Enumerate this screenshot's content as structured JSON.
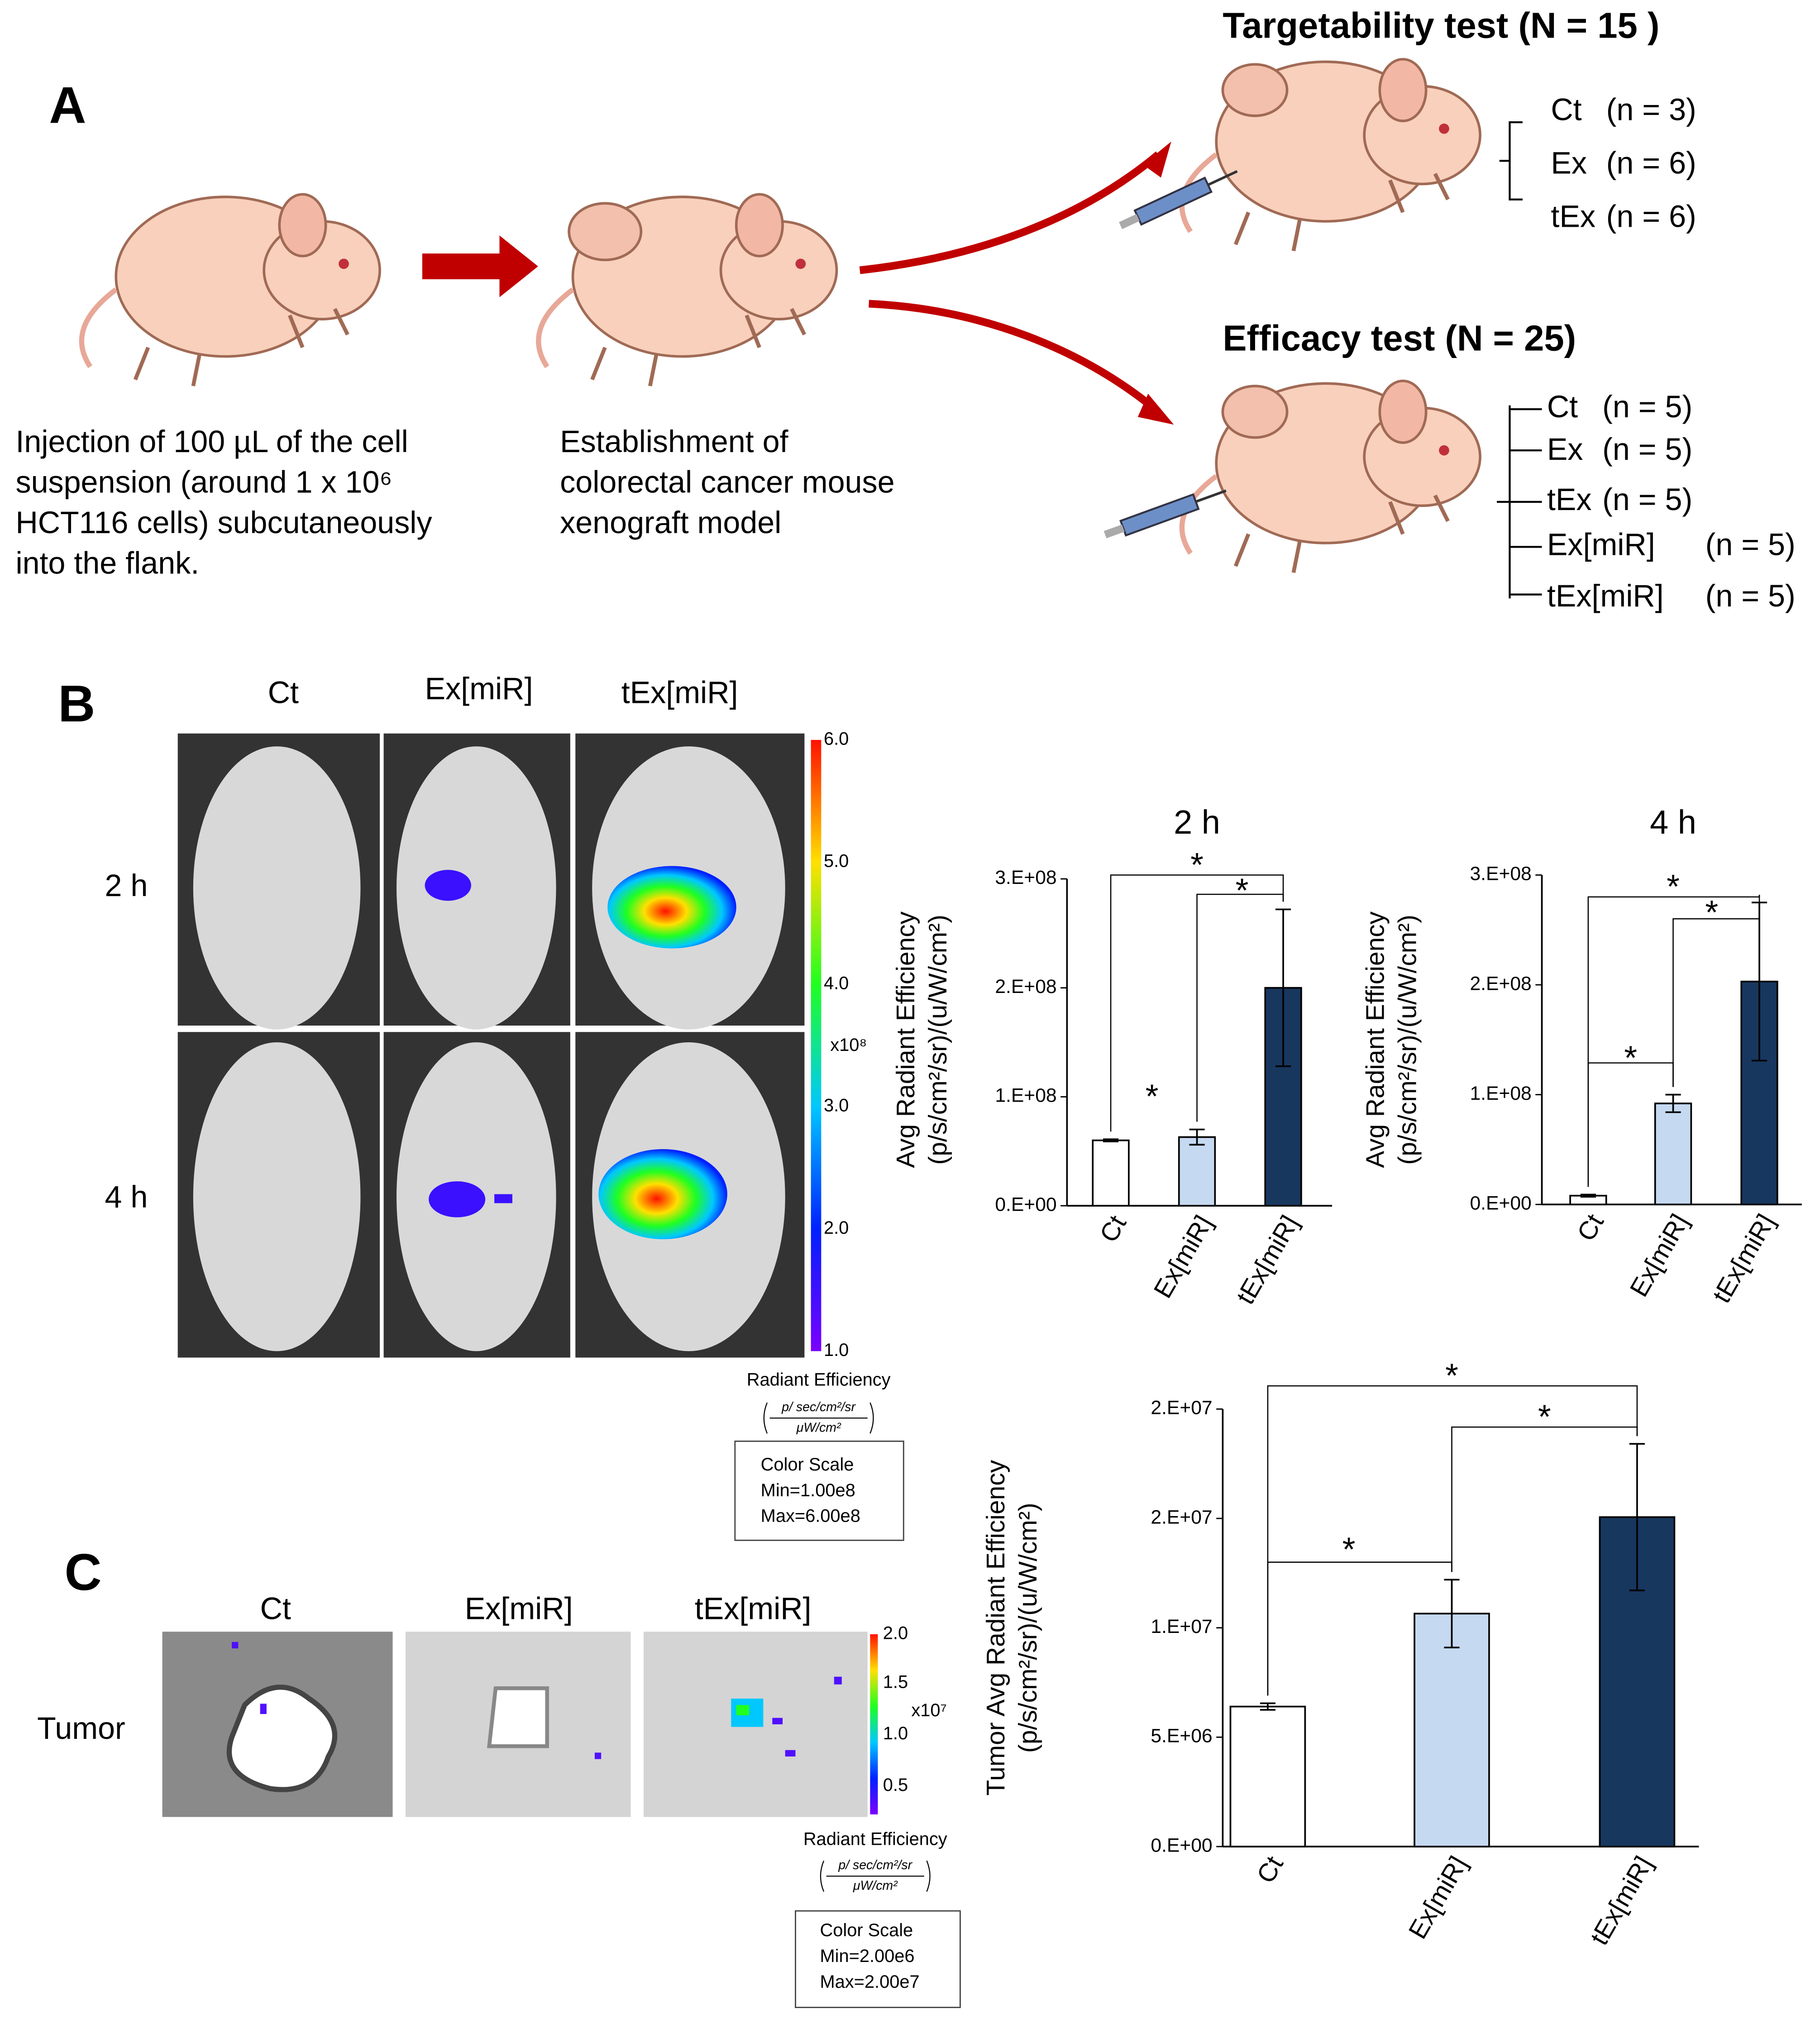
{
  "panel_a": {
    "label": "A",
    "step1_caption": [
      "Injection of 100 µL of the cell",
      "suspension (around 1 x 10⁶",
      "HCT116 cells) subcutaneously",
      "into the flank."
    ],
    "step2_caption": [
      "Establishment of",
      "colorectal cancer mouse",
      "xenograft model"
    ],
    "targetability": {
      "title": "Targetability test (N = 15 )",
      "groups": [
        [
          "Ct",
          "(n = 3)"
        ],
        [
          "Ex",
          "(n = 6)"
        ],
        [
          "tEx",
          "(n = 6)"
        ]
      ]
    },
    "efficacy": {
      "title": "Efficacy test (N = 25)",
      "groups": [
        [
          "Ct",
          "(n = 5)"
        ],
        [
          "Ex",
          "(n = 5)"
        ],
        [
          "tEx",
          "(n = 5)"
        ],
        [
          "Ex[miR]",
          "(n = 5)"
        ],
        [
          "tEx[miR]",
          "(n = 5)"
        ]
      ]
    }
  },
  "panel_b": {
    "label": "B",
    "columns": [
      "Ct",
      "Ex[miR]",
      "tEx[miR]"
    ],
    "rows": [
      "2 h",
      "4 h"
    ],
    "colorbar_labels": [
      "6.0",
      "5.0",
      "4.0",
      "3.0",
      "2.0",
      "1.0"
    ],
    "colorbar_multiplier": "x10⁸",
    "scale_title": "Radiant Efficiency",
    "formula": {
      "numerator": "p/ sec/cm²/sr",
      "denominator": "μW/cm²"
    },
    "scale_box": [
      "Color Scale",
      "Min=1.00e8",
      "Max=6.00e8"
    ]
  },
  "panel_c": {
    "label": "C",
    "columns": [
      "Ct",
      "Ex[miR]",
      "tEx[miR]"
    ],
    "row": "Tumor",
    "colorbar_labels": [
      "2.0",
      "1.5",
      "1.0",
      "0.5"
    ],
    "colorbar_multiplier": "x10⁷",
    "scale_title": "Radiant Efficiency",
    "formula": {
      "numerator": "p/ sec/cm²/sr",
      "denominator": "μW/cm²"
    },
    "scale_box": [
      "Color Scale",
      "Min=2.00e6",
      "Max=2.00e7"
    ]
  },
  "chart_data": [
    {
      "type": "bar",
      "title": "2 h",
      "y_label": [
        "Avg Radiant Efficiency",
        "(p/s/cm²/sr)/(u/W/cm²)"
      ],
      "categories": [
        "Ct",
        "Ex[miR]",
        "tEx[miR]"
      ],
      "values": [
        60000000,
        63000000,
        200000000
      ],
      "errors": [
        1000000,
        7000000,
        72000000
      ],
      "colors": [
        "#ffffff",
        "#c5d9f1",
        "#17375e"
      ],
      "ylim": [
        0,
        300000000
      ],
      "yticks": [
        {
          "value": 0,
          "label": "0.E+00"
        },
        {
          "value": 100000000,
          "label": "1.E+08"
        },
        {
          "value": 200000000,
          "label": "2.E+08"
        },
        {
          "value": 300000000,
          "label": "3.E+08"
        }
      ],
      "annotations": [
        "*",
        "*",
        "*"
      ]
    },
    {
      "type": "bar",
      "title": "4 h",
      "y_label": [
        "Avg Radiant Efficiency",
        "(p/s/cm²/sr)/(u/W/cm²)"
      ],
      "categories": [
        "Ct",
        "Ex[miR]",
        "tEx[miR]"
      ],
      "values": [
        8000000,
        92000000,
        203000000
      ],
      "errors": [
        1000000,
        8000000,
        72000000
      ],
      "colors": [
        "#ffffff",
        "#c5d9f1",
        "#17375e"
      ],
      "ylim": [
        0,
        300000000
      ],
      "yticks": [
        {
          "value": 0,
          "label": "0.E+00"
        },
        {
          "value": 100000000,
          "label": "1.E+08"
        },
        {
          "value": 200000000,
          "label": "2.E+08"
        },
        {
          "value": 300000000,
          "label": "3.E+08"
        }
      ],
      "annotations": [
        "*",
        "*",
        "*"
      ]
    },
    {
      "type": "bar",
      "y_label": [
        "Tumor Avg Radiant Efficiency",
        "(p/s/cm²/sr)/(u/W/cm²)"
      ],
      "categories": [
        "Ct",
        "Ex[miR]",
        "tEx[miR]"
      ],
      "values": [
        6400000,
        10650000,
        15060000
      ],
      "errors": [
        150000,
        1550000,
        3350000
      ],
      "colors": [
        "#ffffff",
        "#c5d9f1",
        "#17375e"
      ],
      "ylim": [
        0,
        20000000
      ],
      "yticks": [
        {
          "value": 0,
          "label": "0.E+00"
        },
        {
          "value": 5000000,
          "label": "5.E+06"
        },
        {
          "value": 10000000,
          "label": "1.E+07"
        },
        {
          "value": 15000000,
          "label": "2.E+07"
        },
        {
          "value": 20000000,
          "label": "2.E+07"
        }
      ],
      "annotations": [
        "*",
        "*",
        "*"
      ]
    }
  ]
}
